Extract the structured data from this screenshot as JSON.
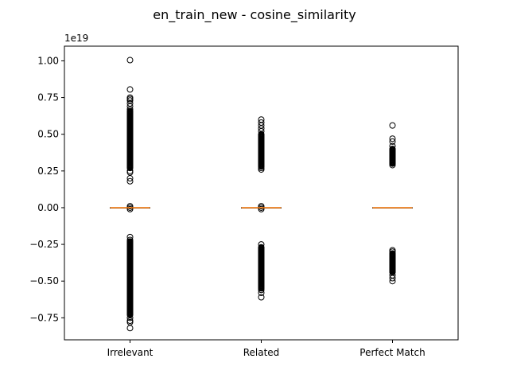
{
  "chart_data": {
    "type": "box",
    "title": "en_train_new - cosine_similarity",
    "ylabel": "",
    "xlabel": "",
    "y_exponent_label": "1e19",
    "y_scale_factor": 1e+19,
    "ylim": [
      -0.9,
      1.1
    ],
    "yticks": [
      -0.75,
      -0.5,
      -0.25,
      0.0,
      0.25,
      0.5,
      0.75,
      1.0
    ],
    "ytick_labels": [
      "−0.75",
      "−0.50",
      "−0.25",
      "0.00",
      "0.25",
      "0.50",
      "0.75",
      "1.00"
    ],
    "categories": [
      "Irrelevant",
      "Related",
      "Perfect Match"
    ],
    "colors": {
      "box": "#000000",
      "median": "#ff7f0e",
      "flier": "#000000",
      "axes": "#000000"
    },
    "boxes": [
      {
        "category": "Irrelevant",
        "median": 0.0,
        "q1": 0.0,
        "q3": 0.0,
        "whisker_low": 0.0,
        "whisker_high": 0.0,
        "outlier_bands": [
          {
            "min": 0.27,
            "max": 0.66
          },
          {
            "min": -0.73,
            "max": -0.23
          }
        ],
        "outliers": [
          1.005,
          0.805,
          0.75,
          0.74,
          0.73,
          0.71,
          0.69,
          0.67,
          0.25,
          0.24,
          0.2,
          0.18,
          0.01,
          0.0,
          -0.01,
          -0.2,
          -0.22,
          -0.75,
          -0.77,
          -0.78,
          -0.82
        ]
      },
      {
        "category": "Related",
        "median": 0.0,
        "q1": 0.0,
        "q3": 0.0,
        "whisker_low": 0.0,
        "whisker_high": 0.0,
        "outlier_bands": [
          {
            "min": 0.28,
            "max": 0.5
          },
          {
            "min": -0.55,
            "max": -0.27
          }
        ],
        "outliers": [
          0.6,
          0.58,
          0.56,
          0.54,
          0.52,
          0.27,
          0.26,
          0.01,
          0.0,
          -0.01,
          -0.25,
          -0.56,
          -0.58,
          -0.61
        ]
      },
      {
        "category": "Perfect Match",
        "median": 0.0,
        "q1": 0.0,
        "q3": 0.0,
        "whisker_low": 0.0,
        "whisker_high": 0.0,
        "outlier_bands": [
          {
            "min": 0.3,
            "max": 0.4
          },
          {
            "min": -0.44,
            "max": -0.31
          }
        ],
        "outliers": [
          0.56,
          0.47,
          0.45,
          0.42,
          0.29,
          -0.29,
          -0.3,
          -0.46,
          -0.48,
          -0.5
        ]
      }
    ],
    "grid": false,
    "legend": "none"
  }
}
